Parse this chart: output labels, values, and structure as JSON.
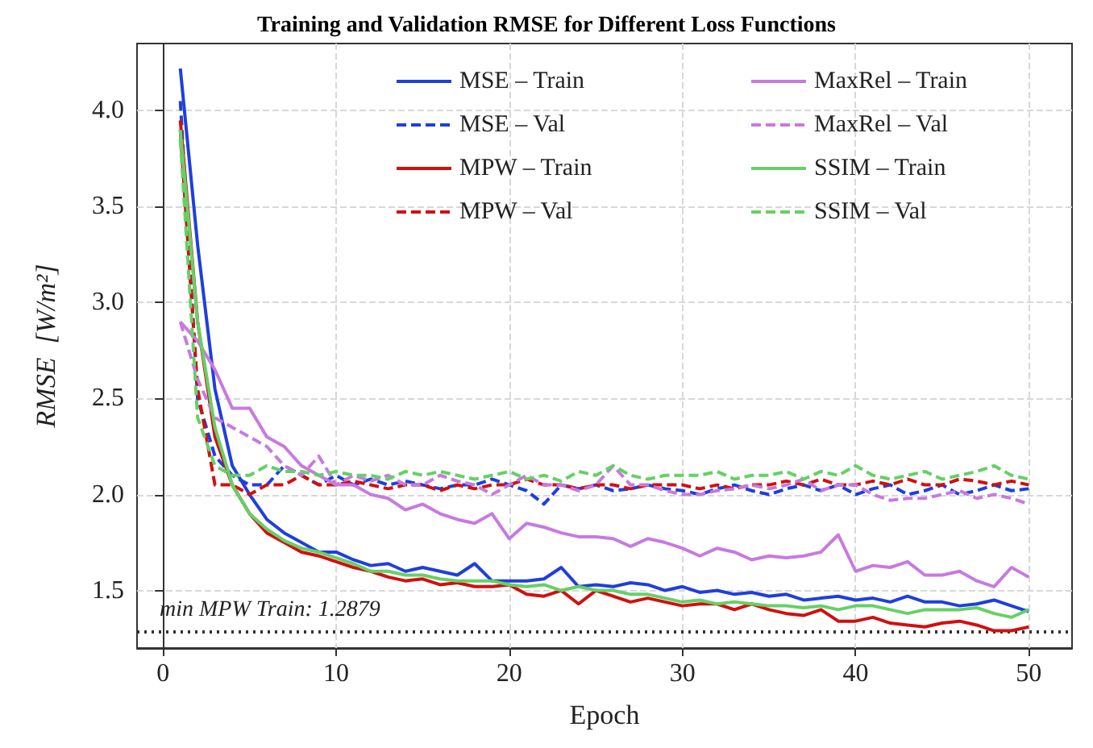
{
  "chart_data": {
    "type": "line",
    "title": "Training and Validation RMSE for Different Loss Functions",
    "xlabel": "Epoch",
    "ylabel": "RMSE  [W/m²]",
    "x": [
      1,
      2,
      3,
      4,
      5,
      6,
      7,
      8,
      9,
      10,
      11,
      12,
      13,
      14,
      15,
      16,
      17,
      18,
      19,
      20,
      21,
      22,
      23,
      24,
      25,
      26,
      27,
      28,
      29,
      30,
      31,
      32,
      33,
      34,
      35,
      36,
      37,
      38,
      39,
      40,
      41,
      42,
      43,
      44,
      45,
      46,
      47,
      48,
      49,
      50
    ],
    "xlim": [
      -1.5,
      52.5
    ],
    "xticks": [
      0,
      10,
      20,
      30,
      40,
      50
    ],
    "ylim": [
      1.2,
      4.35
    ],
    "yticks": [
      1.5,
      {
        "value": 2,
        "label": "2.0"
      },
      2.5,
      {
        "value": 3,
        "label": "3.0"
      },
      3.5,
      {
        "value": 4,
        "label": "4.0"
      }
    ],
    "grid": true,
    "legend": "top right",
    "marker": "none",
    "series": [
      {
        "name": "MSE – Train",
        "color": "#1f3fdc",
        "line_style": "solid",
        "values": [
          4.22,
          3.3,
          2.55,
          2.15,
          2.0,
          1.87,
          1.8,
          1.75,
          1.7,
          1.7,
          1.66,
          1.63,
          1.64,
          1.6,
          1.62,
          1.6,
          1.58,
          1.64,
          1.55,
          1.55,
          1.55,
          1.56,
          1.62,
          1.52,
          1.53,
          1.52,
          1.54,
          1.53,
          1.5,
          1.52,
          1.49,
          1.5,
          1.48,
          1.49,
          1.47,
          1.48,
          1.45,
          1.46,
          1.47,
          1.45,
          1.46,
          1.44,
          1.47,
          1.44,
          1.44,
          1.42,
          1.43,
          1.45,
          1.42,
          1.39
        ]
      },
      {
        "name": "MSE – Val",
        "color": "#1f3fdc",
        "line_style": "dashed",
        "values": [
          4.05,
          2.5,
          2.2,
          2.1,
          2.05,
          2.05,
          2.15,
          2.1,
          2.05,
          2.1,
          2.05,
          2.08,
          2.05,
          2.07,
          2.05,
          2.03,
          2.05,
          2.05,
          2.08,
          2.05,
          2.02,
          1.95,
          2.05,
          2.03,
          2.05,
          2.02,
          2.03,
          2.05,
          2.03,
          2.02,
          2.0,
          2.03,
          2.05,
          2.02,
          2.0,
          2.03,
          2.05,
          2.02,
          2.05,
          2.0,
          2.03,
          2.05,
          2.0,
          2.02,
          2.05,
          2.0,
          2.02,
          2.05,
          2.02,
          2.03
        ]
      },
      {
        "name": "MPW – Train",
        "color": "#d01010",
        "line_style": "solid",
        "values": [
          3.95,
          2.9,
          2.3,
          2.05,
          1.9,
          1.8,
          1.75,
          1.7,
          1.68,
          1.65,
          1.62,
          1.6,
          1.57,
          1.55,
          1.56,
          1.53,
          1.54,
          1.52,
          1.52,
          1.53,
          1.48,
          1.47,
          1.5,
          1.43,
          1.5,
          1.47,
          1.44,
          1.46,
          1.44,
          1.42,
          1.43,
          1.43,
          1.4,
          1.43,
          1.4,
          1.38,
          1.37,
          1.4,
          1.34,
          1.34,
          1.36,
          1.33,
          1.32,
          1.31,
          1.33,
          1.34,
          1.32,
          1.29,
          1.29,
          1.31
        ]
      },
      {
        "name": "MPW – Val",
        "color": "#d01010",
        "line_style": "dashed",
        "values": [
          3.9,
          2.55,
          2.05,
          2.05,
          2.0,
          2.05,
          2.05,
          2.1,
          2.05,
          2.05,
          2.07,
          2.05,
          2.03,
          2.05,
          2.05,
          2.02,
          2.05,
          2.03,
          2.05,
          2.05,
          2.08,
          2.05,
          2.05,
          2.03,
          2.05,
          2.05,
          2.03,
          2.05,
          2.05,
          2.05,
          2.03,
          2.05,
          2.03,
          2.05,
          2.05,
          2.07,
          2.05,
          2.08,
          2.05,
          2.05,
          2.07,
          2.05,
          2.08,
          2.05,
          2.05,
          2.08,
          2.07,
          2.05,
          2.07,
          2.05
        ]
      },
      {
        "name": "MaxRel – Train",
        "color": "#c77ae0",
        "line_style": "solid",
        "values": [
          2.9,
          2.8,
          2.65,
          2.45,
          2.45,
          2.3,
          2.25,
          2.15,
          2.1,
          2.05,
          2.05,
          2.0,
          1.98,
          1.92,
          1.95,
          1.9,
          1.87,
          1.85,
          1.9,
          1.77,
          1.85,
          1.83,
          1.8,
          1.78,
          1.78,
          1.77,
          1.73,
          1.77,
          1.75,
          1.72,
          1.68,
          1.72,
          1.7,
          1.66,
          1.68,
          1.67,
          1.68,
          1.7,
          1.79,
          1.6,
          1.63,
          1.62,
          1.65,
          1.58,
          1.58,
          1.6,
          1.55,
          1.52,
          1.62,
          1.57
        ]
      },
      {
        "name": "MaxRel – Val",
        "color": "#c77ae0",
        "line_style": "dashed",
        "values": [
          2.9,
          2.6,
          2.4,
          2.35,
          2.3,
          2.25,
          2.15,
          2.1,
          2.2,
          2.05,
          2.1,
          2.07,
          2.1,
          2.05,
          2.05,
          2.1,
          2.07,
          2.05,
          2.0,
          2.05,
          2.1,
          2.05,
          2.05,
          2.02,
          2.05,
          2.15,
          2.05,
          2.05,
          2.02,
          2.0,
          2.0,
          2.02,
          2.03,
          2.05,
          2.03,
          2.05,
          2.08,
          2.02,
          2.05,
          2.05,
          2.0,
          1.97,
          1.98,
          1.98,
          2.0,
          2.02,
          1.98,
          2.0,
          1.98,
          1.95
        ]
      },
      {
        "name": "SSIM – Train",
        "color": "#66d066",
        "line_style": "solid",
        "values": [
          3.9,
          2.9,
          2.35,
          2.05,
          1.9,
          1.82,
          1.76,
          1.72,
          1.7,
          1.67,
          1.64,
          1.6,
          1.6,
          1.58,
          1.58,
          1.56,
          1.55,
          1.55,
          1.55,
          1.53,
          1.52,
          1.53,
          1.5,
          1.52,
          1.5,
          1.5,
          1.48,
          1.48,
          1.46,
          1.44,
          1.45,
          1.43,
          1.44,
          1.43,
          1.42,
          1.42,
          1.41,
          1.42,
          1.4,
          1.42,
          1.42,
          1.4,
          1.38,
          1.4,
          1.4,
          1.4,
          1.41,
          1.38,
          1.36,
          1.4
        ]
      },
      {
        "name": "SSIM – Val",
        "color": "#66d066",
        "line_style": "dashed",
        "values": [
          3.85,
          2.4,
          2.15,
          2.1,
          2.1,
          2.15,
          2.12,
          2.12,
          2.1,
          2.12,
          2.1,
          2.1,
          2.08,
          2.12,
          2.1,
          2.12,
          2.1,
          2.08,
          2.1,
          2.12,
          2.08,
          2.1,
          2.07,
          2.12,
          2.1,
          2.15,
          2.1,
          2.08,
          2.1,
          2.1,
          2.1,
          2.12,
          2.08,
          2.1,
          2.1,
          2.12,
          2.08,
          2.12,
          2.1,
          2.15,
          2.1,
          2.08,
          2.1,
          2.12,
          2.08,
          2.1,
          2.12,
          2.15,
          2.1,
          2.08
        ]
      }
    ],
    "ref_lines": [
      {
        "axis": "y",
        "value": 1.2879,
        "label": "min MPW Train: 1.2879",
        "color": "#333333",
        "line_style": "dotted"
      }
    ]
  }
}
